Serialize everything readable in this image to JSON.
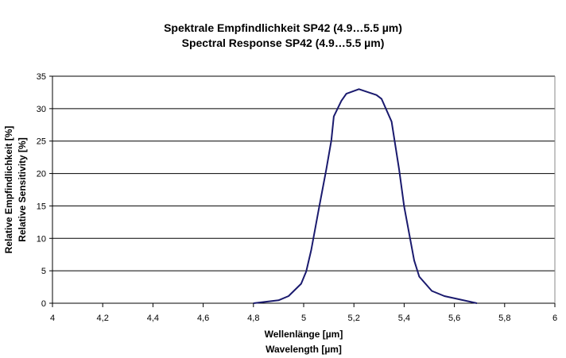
{
  "chart_data": {
    "type": "line",
    "title": [
      "Spektrale Empfindlichkeit SP42 (4.9…5.5 µm)",
      "Spectral Response SP42 (4.9…5.5 µm)"
    ],
    "xlabel": [
      "Wellenlänge [µm]",
      "Wavelength [µm]"
    ],
    "ylabel": [
      "Relative Empfindlichkeit [%]",
      "Relative Sensitivity [%]"
    ],
    "xlim": [
      4,
      6
    ],
    "ylim": [
      0,
      35
    ],
    "xticks": [
      "4",
      "4,2",
      "4,4",
      "4,6",
      "4,8",
      "5",
      "5,2",
      "5,4",
      "5,6",
      "5,8",
      "6"
    ],
    "yticks": [
      "0",
      "5",
      "10",
      "15",
      "20",
      "25",
      "30",
      "35"
    ],
    "grid": "horizontal",
    "line_color": "#1a1a6e",
    "series": [
      {
        "name": "SP42",
        "x": [
          4.8,
          4.9,
          4.94,
          4.99,
          5.01,
          5.03,
          5.06,
          5.09,
          5.11,
          5.12,
          5.15,
          5.17,
          5.22,
          5.29,
          5.31,
          5.35,
          5.38,
          5.4,
          5.44,
          5.46,
          5.51,
          5.56,
          5.69
        ],
        "y": [
          0,
          0.45,
          1.1,
          3.0,
          4.9,
          8.2,
          14.5,
          20.6,
          25.1,
          28.8,
          31.2,
          32.3,
          33.0,
          32.1,
          31.5,
          28.0,
          20.6,
          14.9,
          6.6,
          4.1,
          1.9,
          1.1,
          0
        ]
      }
    ]
  }
}
